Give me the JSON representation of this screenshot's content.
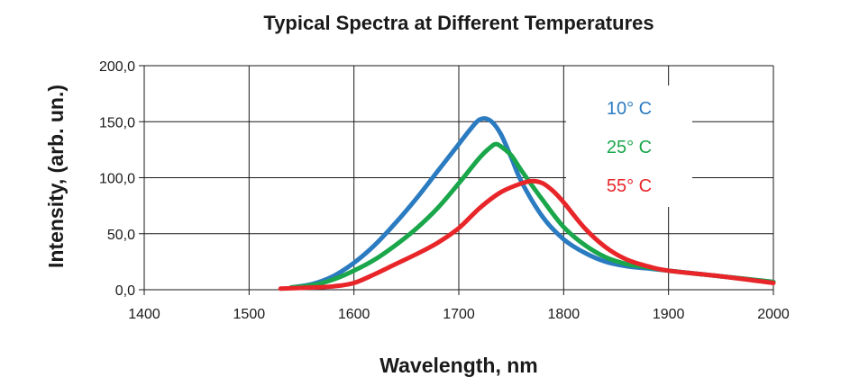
{
  "chart_data": {
    "type": "line",
    "title": "Typical Spectra at Different Temperatures",
    "xlabel": "Wavelength, nm",
    "ylabel": "Intensity, (arb. un.)",
    "xlim": [
      1400,
      2000
    ],
    "ylim": [
      0,
      200
    ],
    "xticks": [
      "1400",
      "1500",
      "1600",
      "1700",
      "1800",
      "1900",
      "2000"
    ],
    "yticks": [
      "0,0",
      "50,0",
      "100,0",
      "150,0",
      "200,0"
    ],
    "grid": true,
    "legend": "inside-upper-right",
    "series": [
      {
        "name": "10° C",
        "color": "#2b7bc1",
        "x": [
          1540,
          1560,
          1580,
          1600,
          1620,
          1640,
          1660,
          1680,
          1700,
          1710,
          1720,
          1730,
          1740,
          1750,
          1760,
          1780,
          1800,
          1820,
          1840,
          1860,
          1880,
          1900,
          1950,
          2000
        ],
        "y": [
          2,
          5,
          12,
          24,
          40,
          60,
          82,
          106,
          130,
          142,
          152,
          151,
          139,
          118,
          96,
          65,
          45,
          33,
          25,
          21,
          19,
          17,
          12,
          7
        ]
      },
      {
        "name": "25° C",
        "color": "#1aa64a",
        "x": [
          1540,
          1560,
          1580,
          1600,
          1620,
          1640,
          1660,
          1680,
          1700,
          1720,
          1730,
          1735,
          1740,
          1750,
          1760,
          1780,
          1800,
          1820,
          1840,
          1860,
          1880,
          1900,
          1950,
          2000
        ],
        "y": [
          2,
          4,
          9,
          17,
          27,
          40,
          55,
          73,
          95,
          118,
          127,
          130,
          128,
          120,
          106,
          80,
          56,
          40,
          29,
          23,
          20,
          17,
          12,
          7
        ]
      },
      {
        "name": "55° C",
        "color": "#e8262a",
        "x": [
          1530,
          1560,
          1580,
          1600,
          1620,
          1640,
          1660,
          1680,
          1700,
          1720,
          1740,
          1760,
          1770,
          1780,
          1790,
          1800,
          1820,
          1840,
          1860,
          1880,
          1900,
          1950,
          2000
        ],
        "y": [
          1,
          2,
          3,
          6,
          14,
          23,
          32,
          42,
          55,
          73,
          87,
          95,
          97,
          95,
          88,
          78,
          55,
          38,
          27,
          21,
          17,
          12,
          6
        ]
      }
    ]
  }
}
